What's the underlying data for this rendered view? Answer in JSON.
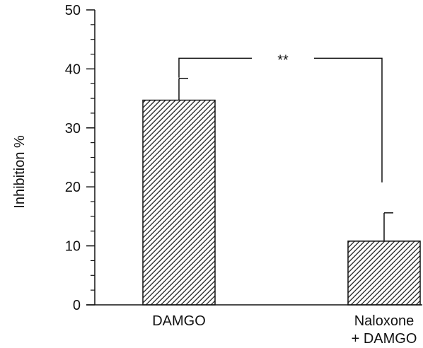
{
  "chart_data": {
    "type": "bar",
    "categories": [
      [
        "DAMGO"
      ],
      [
        "Naloxone",
        "+ DAMGO"
      ]
    ],
    "values": [
      34.7,
      10.8
    ],
    "errors": [
      3.7,
      4.8
    ],
    "ylabel": "Inhibition  %",
    "xlabel": "",
    "ylim": [
      0,
      50
    ],
    "yticks": [
      0,
      10,
      20,
      30,
      40,
      50
    ],
    "minor_tick_step": 2.5,
    "bar_fill": "diagonal-hatch",
    "grid": false,
    "legend": "none",
    "significance": {
      "between": [
        0,
        1
      ],
      "label": "**",
      "bracket_y": 41.8
    }
  },
  "colors": {
    "ink": "#111111",
    "background": "#ffffff"
  }
}
